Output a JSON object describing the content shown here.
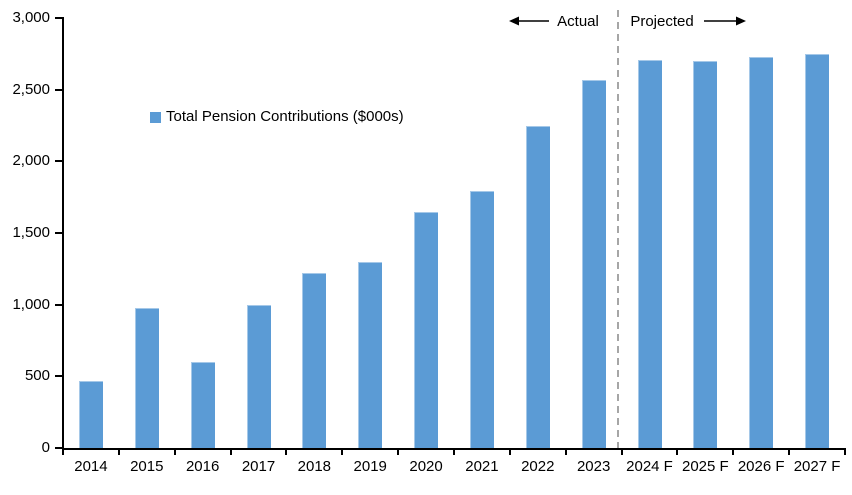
{
  "chart_data": {
    "type": "bar",
    "title": "",
    "legend": "Total Pension Contributions ($000s)",
    "categories": [
      "2014",
      "2015",
      "2016",
      "2017",
      "2018",
      "2019",
      "2020",
      "2021",
      "2022",
      "2023",
      "2024 F",
      "2025 F",
      "2026 F",
      "2027 F"
    ],
    "series": [
      {
        "name": "Total Pension Contributions ($000s)",
        "values": [
          470,
          980,
          600,
          1000,
          1220,
          1300,
          1650,
          1790,
          2250,
          2570,
          2710,
          2700,
          2730,
          2750
        ]
      }
    ],
    "xlabel": "",
    "ylabel": "",
    "ylim": [
      0,
      3000
    ],
    "y_tick_interval": 500,
    "y_tick_labels": [
      "0",
      "500",
      "1,000",
      "1,500",
      "2,000",
      "2,500",
      "3,000"
    ],
    "grid": false,
    "legend_position": "inside-upper-left",
    "annotations": {
      "actual_label": "Actual",
      "projected_label": "Projected",
      "divider_after_category": "2023"
    },
    "colors": {
      "bar": "#5B9BD5",
      "divider": "#A6A6A6",
      "axis": "#000000",
      "text": "#000000"
    }
  }
}
